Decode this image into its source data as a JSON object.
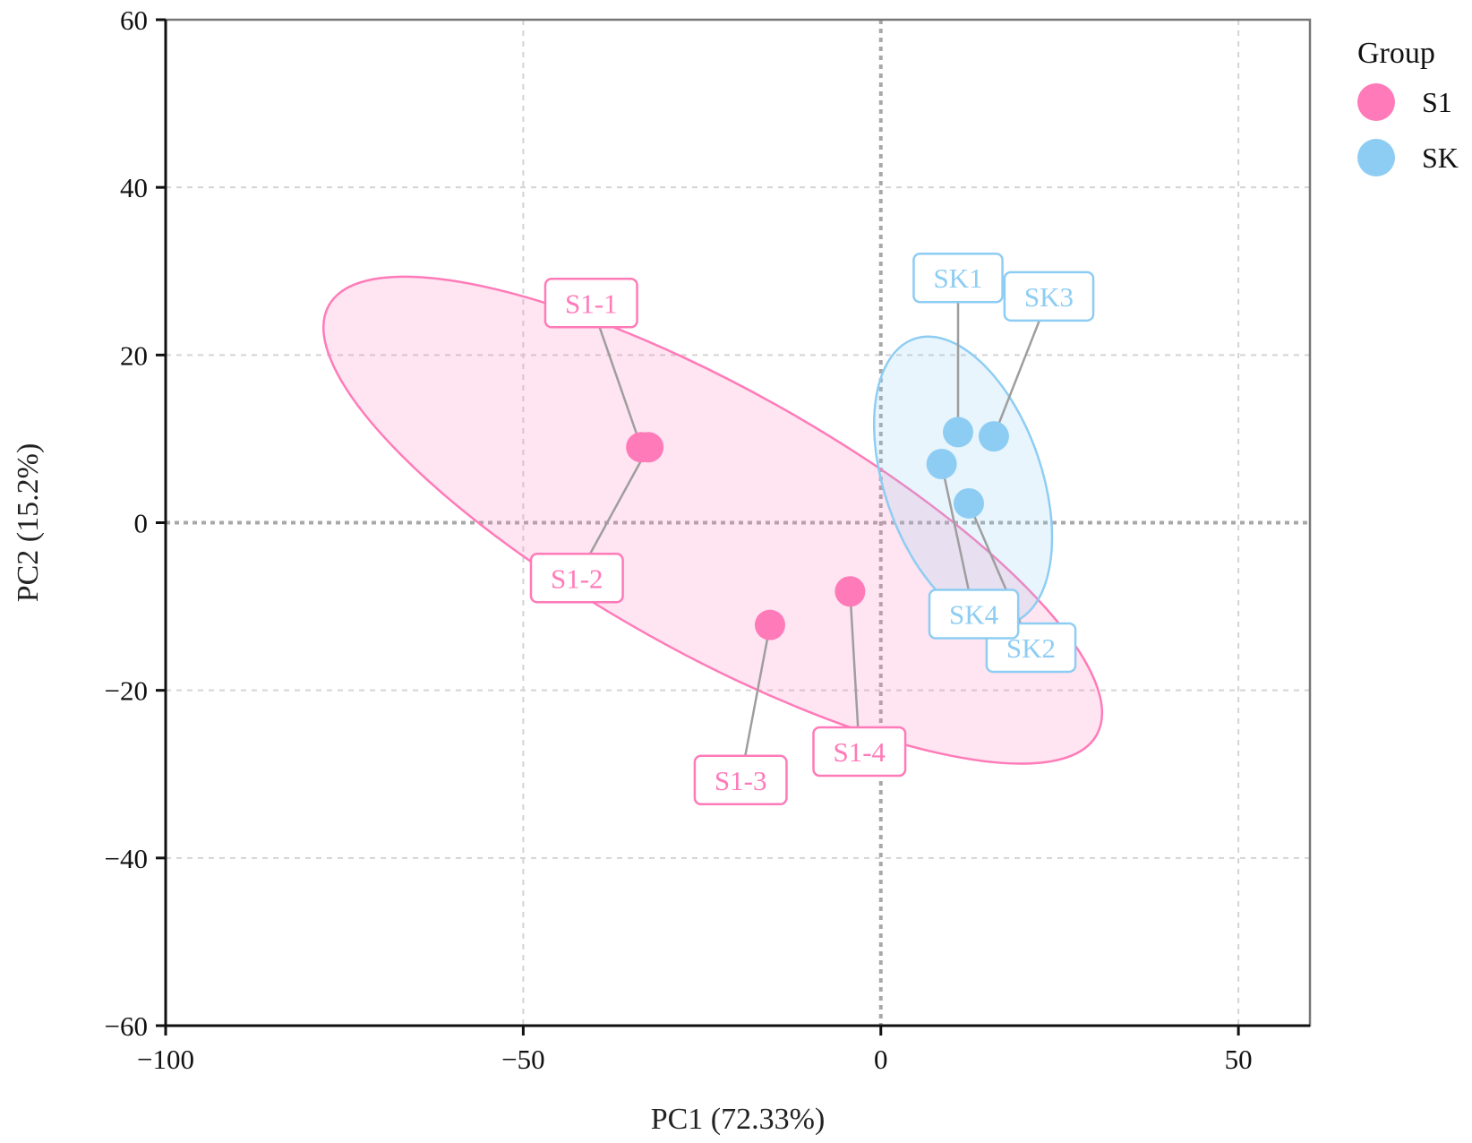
{
  "chart_data": {
    "type": "scatter",
    "xlabel": "PC1 (72.33%)",
    "ylabel": "PC2 (15.2%)",
    "xlim": [
      -100,
      60
    ],
    "ylim": [
      -60,
      60
    ],
    "xticks": [
      -100,
      -50,
      0,
      50
    ],
    "yticks": [
      -60,
      -40,
      -20,
      0,
      20,
      40,
      60
    ],
    "xtick_labels": [
      "−100",
      "−50",
      "0",
      "50"
    ],
    "ytick_labels": [
      "−60",
      "−40",
      "−20",
      "0",
      "20",
      "40",
      "60"
    ],
    "grid": true,
    "zero_lines": true,
    "legend": {
      "title": "Group",
      "position": "right",
      "entries": [
        "S1",
        "SK"
      ]
    },
    "series": [
      {
        "name": "S1",
        "color": "#ff7ab8",
        "ellipse": {
          "center": [
            -23.5,
            0.3
          ],
          "semi_axes": [
            61.5,
            15.7
          ],
          "angle_deg": -29.2
        },
        "points": [
          {
            "label": "S1-1",
            "x": -33.5,
            "y": 9.0
          },
          {
            "label": "S1-2",
            "x": -32.5,
            "y": 9.0
          },
          {
            "label": "S1-3",
            "x": -15.5,
            "y": -12.2
          },
          {
            "label": "S1-4",
            "x": -4.3,
            "y": -8.2
          }
        ]
      },
      {
        "name": "SK",
        "color": "#8ecdf3",
        "ellipse": {
          "center": [
            11.5,
            5.0
          ],
          "semi_axes": [
            11.0,
            17.9
          ],
          "angle_deg": 19
        },
        "points": [
          {
            "label": "SK1",
            "x": 10.8,
            "y": 10.8
          },
          {
            "label": "SK2",
            "x": 12.3,
            "y": 2.3
          },
          {
            "label": "SK3",
            "x": 15.8,
            "y": 10.3
          },
          {
            "label": "SK4",
            "x": 8.5,
            "y": 7.0
          }
        ]
      }
    ],
    "annotations": [
      {
        "text": "S1-1",
        "series": 0,
        "point": 0,
        "x": -40.5,
        "y": 26.2
      },
      {
        "text": "S1-2",
        "series": 0,
        "point": 1,
        "x": -42.5,
        "y": -6.6
      },
      {
        "text": "S1-3",
        "series": 0,
        "point": 2,
        "x": -19.6,
        "y": -30.7
      },
      {
        "text": "S1-4",
        "series": 0,
        "point": 3,
        "x": -3.0,
        "y": -27.3
      },
      {
        "text": "SK1",
        "series": 1,
        "point": 0,
        "x": 10.8,
        "y": 29.2
      },
      {
        "text": "SK2",
        "series": 1,
        "point": 1,
        "x": 21.0,
        "y": -14.9
      },
      {
        "text": "SK3",
        "series": 1,
        "point": 2,
        "x": 23.5,
        "y": 27.0
      },
      {
        "text": "SK4",
        "series": 1,
        "point": 3,
        "x": 13.0,
        "y": -10.9
      }
    ]
  }
}
